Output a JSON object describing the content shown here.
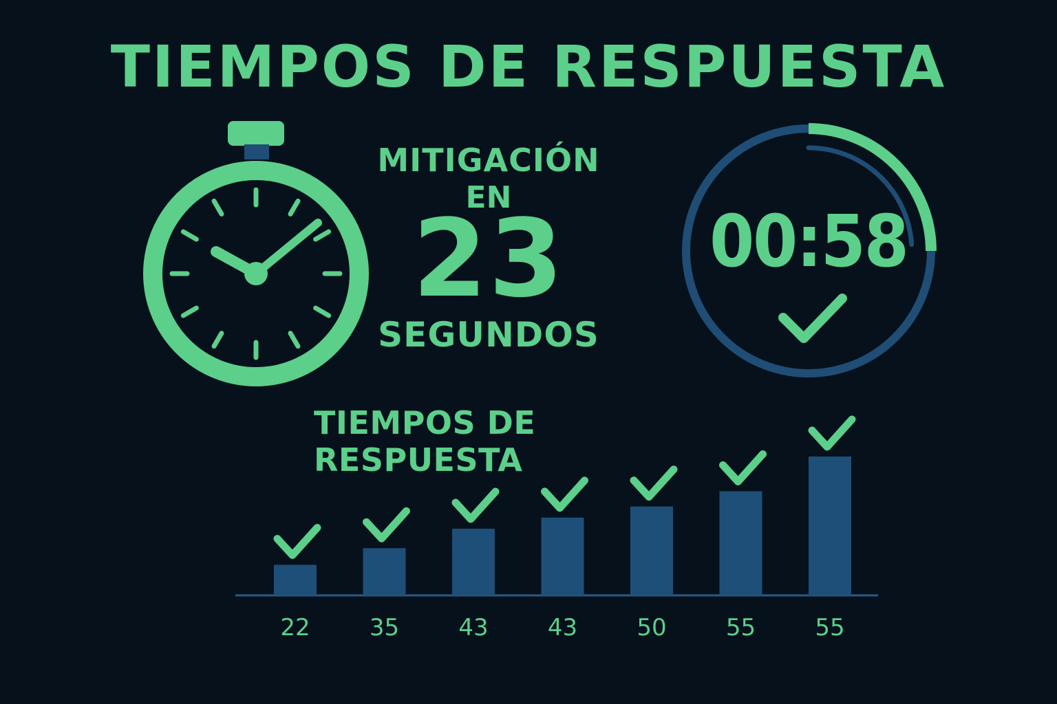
{
  "header": {
    "title": "TIEMPOS DE RESPUESTA"
  },
  "mitigation": {
    "label": "MITIGACIÓN",
    "connector": "EN",
    "value": "23",
    "unit": "SEGUNDOS"
  },
  "timer": {
    "readout": "00:58",
    "progress": 0.25
  },
  "icons": {
    "stopwatch": "stopwatch-icon",
    "timer": "timer-ring-icon",
    "check": "checkmark-icon"
  },
  "colors": {
    "background": "#06111c",
    "accent_green": "#5ccf8a",
    "bar_blue": "#1e4f78",
    "ring_blue": "#1f4d75",
    "axis": "#2a5a86"
  },
  "chart_data": {
    "type": "bar",
    "title": "TIEMPOS DE RESPUESTA",
    "categories": [
      "22",
      "35",
      "43",
      "43",
      "50",
      "55",
      "55"
    ],
    "values": [
      22,
      35,
      43,
      43,
      50,
      55,
      55
    ],
    "bar_heights_rel": [
      0.22,
      0.34,
      0.48,
      0.56,
      0.64,
      0.75,
      1.0
    ],
    "markers": [
      "check",
      "check",
      "check",
      "check",
      "check",
      "check",
      "check"
    ],
    "xlabel": "",
    "ylabel": "",
    "grid": false,
    "legend": "none"
  }
}
